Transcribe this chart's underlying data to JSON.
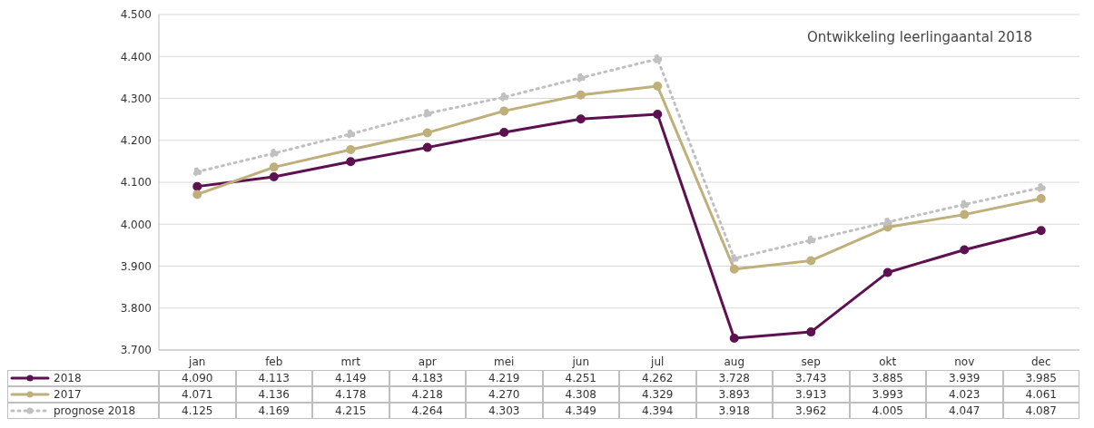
{
  "chart_data": {
    "type": "line",
    "title": "Ontwikkeling leerlingaantal 2018",
    "categories": [
      "jan",
      "feb",
      "mrt",
      "apr",
      "mei",
      "jun",
      "jul",
      "aug",
      "sep",
      "okt",
      "nov",
      "dec"
    ],
    "series": [
      {
        "name": "2018",
        "color": "#5e1150",
        "line_style": "solid",
        "values": [
          4090,
          4113,
          4149,
          4183,
          4219,
          4251,
          4262,
          3728,
          3743,
          3885,
          3939,
          3985
        ],
        "value_labels": [
          "4.090",
          "4.113",
          "4.149",
          "4.183",
          "4.219",
          "4.251",
          "4.262",
          "3.728",
          "3.743",
          "3.885",
          "3.939",
          "3.985"
        ]
      },
      {
        "name": "2017",
        "color": "#bfb07b",
        "line_style": "solid",
        "values": [
          4071,
          4136,
          4178,
          4218,
          4270,
          4308,
          4329,
          3893,
          3913,
          3993,
          4023,
          4061
        ],
        "value_labels": [
          "4.071",
          "4.136",
          "4.178",
          "4.218",
          "4.270",
          "4.308",
          "4.329",
          "3.893",
          "3.913",
          "3.993",
          "4.023",
          "4.061"
        ]
      },
      {
        "name": "prognose 2018",
        "color": "#c0c0c0",
        "line_style": "dotted",
        "values": [
          4125,
          4169,
          4215,
          4264,
          4303,
          4349,
          4394,
          3918,
          3962,
          4005,
          4047,
          4087
        ],
        "value_labels": [
          "4.125",
          "4.169",
          "4.215",
          "4.264",
          "4.303",
          "4.349",
          "4.394",
          "3.918",
          "3.962",
          "4.005",
          "4.047",
          "4.087"
        ]
      }
    ],
    "ylim": [
      3700,
      4500
    ],
    "yticks": [
      {
        "value": 3700,
        "label": "3.700"
      },
      {
        "value": 3800,
        "label": "3.800"
      },
      {
        "value": 3900,
        "label": "3.900"
      },
      {
        "value": 4000,
        "label": "4.000"
      },
      {
        "value": 4100,
        "label": "4.100"
      },
      {
        "value": 4200,
        "label": "4.200"
      },
      {
        "value": 4300,
        "label": "4.300"
      },
      {
        "value": 4400,
        "label": "4.400"
      },
      {
        "value": 4500,
        "label": "4.500"
      }
    ],
    "grid": "y",
    "legend": "bottom",
    "marker": "circle"
  }
}
